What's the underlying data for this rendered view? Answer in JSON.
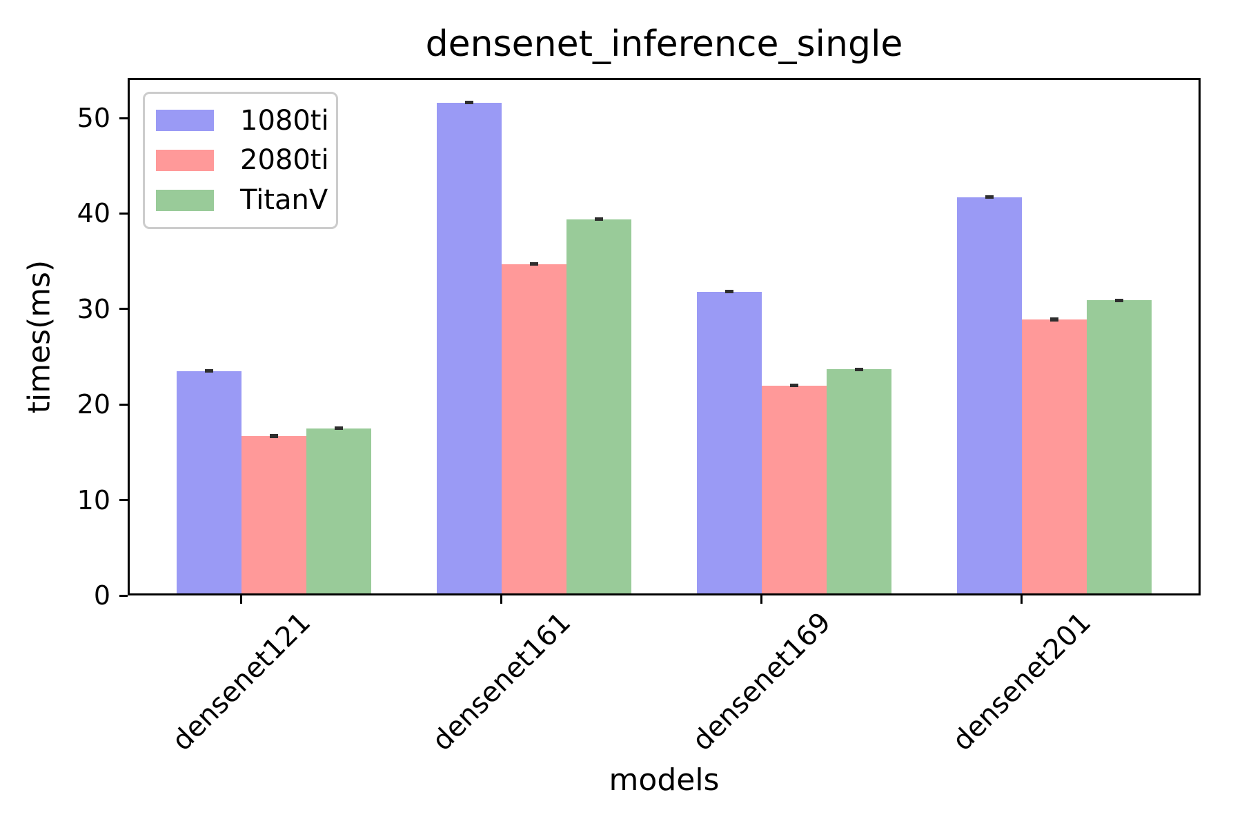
{
  "chart_data": {
    "type": "bar",
    "title": "densenet_inference_single",
    "xlabel": "models",
    "ylabel": "times(ms)",
    "categories": [
      "densenet121",
      "densenet161",
      "densenet169",
      "densenet201"
    ],
    "series": [
      {
        "name": "1080ti",
        "color": "#9A9AF5",
        "values": [
          23.5,
          51.6,
          31.8,
          41.7
        ],
        "errors": [
          0.15,
          0.15,
          0.1,
          0.15
        ]
      },
      {
        "name": "2080ti",
        "color": "#FF9999",
        "values": [
          16.7,
          34.7,
          22.0,
          28.9
        ],
        "errors": [
          0.2,
          0.15,
          0.1,
          0.2
        ]
      },
      {
        "name": "TitanV",
        "color": "#99CB99",
        "values": [
          17.5,
          39.4,
          23.7,
          30.9
        ],
        "errors": [
          0.05,
          0.1,
          0.15,
          0.2
        ]
      }
    ],
    "yticks": [
      0,
      10,
      20,
      30,
      40,
      50
    ],
    "ylim": [
      0,
      54.2
    ],
    "bar_group_width": 0.75,
    "legend_position": "upper left",
    "grid": false,
    "error_color": "#2E2E2E",
    "axis_color": "#000000",
    "legend_border_color": "#CCCCCC",
    "background_color": "#FFFFFF"
  }
}
